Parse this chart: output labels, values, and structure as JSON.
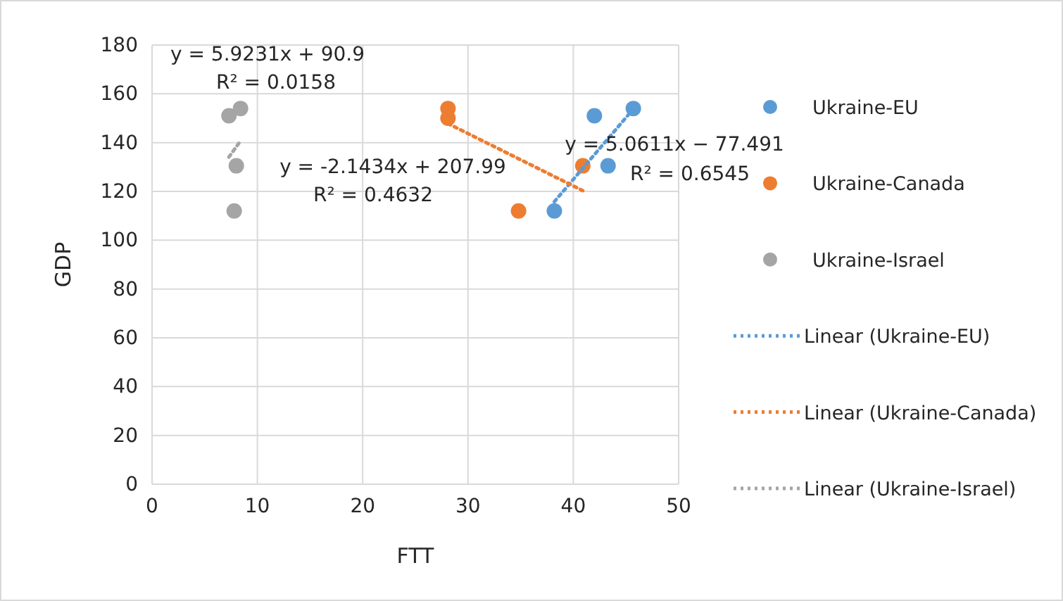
{
  "chart_data": {
    "type": "scatter",
    "xlabel": "FTT",
    "ylabel": "GDP",
    "xlim": [
      0,
      50
    ],
    "xticks": [
      0,
      10,
      20,
      30,
      40,
      50
    ],
    "ylim": [
      0,
      180
    ],
    "yticks": [
      0,
      20,
      40,
      60,
      80,
      100,
      120,
      140,
      160,
      180
    ],
    "grid": true,
    "legend": "right",
    "marker": "circle",
    "series": [
      {
        "name": "Ukraine-EU",
        "color": "#5b9bd5",
        "x": [
          38.2,
          42.0,
          43.3,
          45.7
        ],
        "values": [
          112,
          151,
          130.5,
          154
        ]
      },
      {
        "name": "Ukraine-Canada",
        "color": "#ed7d31",
        "x": [
          34.8,
          40.9,
          28.1,
          28.1
        ],
        "values": [
          112,
          130.5,
          154,
          150
        ]
      },
      {
        "name": "Ukraine-Israel",
        "color": "#a5a5a5",
        "x": [
          7.3,
          8.4,
          8.0,
          7.8
        ],
        "values": [
          151,
          154,
          130.5,
          112
        ]
      },
      {
        "name": "Linear (Ukraine-EU)",
        "type": "line",
        "line_style": "dotted",
        "marker": "none",
        "color": "#5b9bd5",
        "x": [
          38.2,
          45.7
        ],
        "values": [
          115.8,
          153.8
        ]
      },
      {
        "name": "Linear (Ukraine-Canada)",
        "type": "line",
        "line_style": "dotted",
        "marker": "none",
        "color": "#ed7d31",
        "x": [
          28.1,
          40.9
        ],
        "values": [
          147.8,
          120.3
        ]
      },
      {
        "name": "Linear (Ukraine-Israel)",
        "type": "line",
        "line_style": "dotted",
        "marker": "none",
        "color": "#a5a5a5",
        "x": [
          7.3,
          8.4
        ],
        "values": [
          134.1,
          140.7
        ]
      }
    ],
    "annotations": [
      "y = 5.9231x + 90.9",
      "R² = 0.0158",
      "y = -2.1434x + 207.99",
      "R² = 0.4632",
      "y = 5.0611x − 77.491",
      "R² = 0.6545"
    ]
  }
}
